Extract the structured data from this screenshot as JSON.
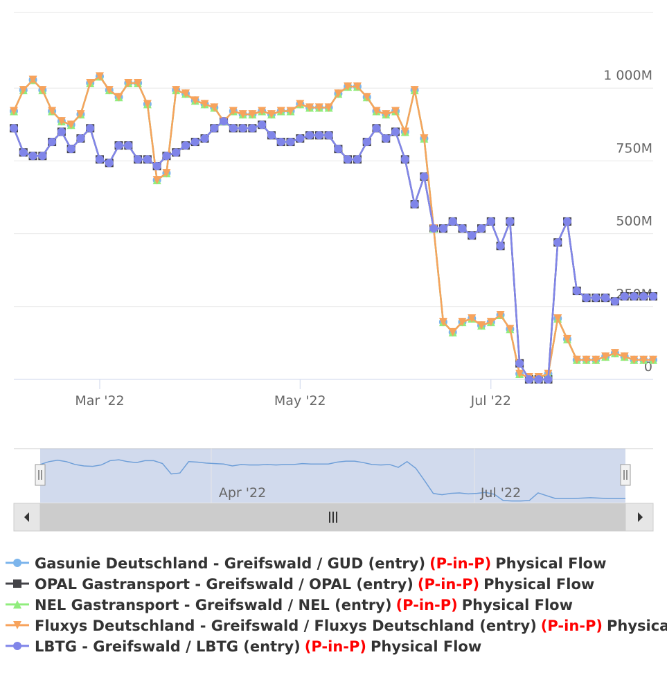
{
  "chart_data": {
    "type": "line",
    "categories": [
      null,
      null,
      null,
      null,
      null,
      null,
      null,
      null,
      null,
      "Mar '22",
      null,
      null,
      null,
      null,
      null,
      null,
      null,
      null,
      null,
      null,
      null,
      null,
      null,
      null,
      null,
      null,
      null,
      null,
      null,
      null,
      "May '22",
      null,
      null,
      null,
      null,
      null,
      null,
      null,
      null,
      null,
      null,
      null,
      null,
      null,
      null,
      null,
      null,
      null,
      null,
      null,
      "Jul '22",
      null,
      null,
      null,
      null,
      null,
      null,
      null,
      null,
      null,
      null,
      null,
      null,
      null,
      null,
      null,
      null,
      null
    ],
    "ylim": [
      0,
      1250
    ],
    "yticks": [
      0,
      {
        "value": 250,
        "label": "250M"
      },
      {
        "value": 500,
        "label": "500M"
      },
      {
        "value": 750,
        "label": "750M"
      },
      {
        "value": 1000,
        "label": "1 000M"
      }
    ],
    "grid": true,
    "series": [
      {
        "name": "Gasunie Deutschland - Greifswald / GUD (entry)",
        "legend_tag": "(P-in-P)",
        "legend_suffix": "Physical Flow",
        "color": "#7cb5ec",
        "marker": "circle",
        "values": [
          921,
          993,
          1028,
          993,
          921,
          886,
          874,
          910,
          1017,
          1040,
          993,
          969,
          1017,
          1017,
          945,
          684,
          708,
          993,
          981,
          957,
          945,
          933,
          886,
          921,
          910,
          910,
          921,
          910,
          921,
          921,
          945,
          933,
          933,
          933,
          981,
          1005,
          1005,
          969,
          921,
          910,
          921,
          850,
          993,
          827,
          518,
          197,
          162,
          197,
          209,
          185,
          197,
          221,
          173,
          19,
          7,
          7,
          19,
          209,
          138,
          67,
          67,
          67,
          78,
          90,
          78,
          67,
          67,
          67
        ]
      },
      {
        "name": "OPAL Gastransport - Greifswald / OPAL (entry)",
        "legend_tag": "(P-in-P)",
        "legend_suffix": "Physical Flow",
        "color": "#434348",
        "marker": "square",
        "values": [
          862,
          779,
          767,
          767,
          815,
          850,
          791,
          827,
          862,
          755,
          743,
          803,
          803,
          755,
          755,
          732,
          767,
          779,
          803,
          815,
          827,
          862,
          886,
          862,
          862,
          862,
          874,
          838,
          815,
          815,
          827,
          838,
          838,
          838,
          791,
          755,
          755,
          815,
          862,
          827,
          850,
          755,
          601,
          696,
          518,
          518,
          542,
          518,
          494,
          518,
          542,
          458,
          542,
          55,
          0,
          0,
          0,
          470,
          542,
          304,
          280,
          280,
          280,
          268,
          285,
          285,
          285,
          285
        ]
      },
      {
        "name": "NEL Gastransport - Greifswald / NEL (entry)",
        "legend_tag": "(P-in-P)",
        "legend_suffix": "Physical Flow",
        "color": "#90ed7d",
        "marker": "triangle",
        "values": [
          921,
          993,
          1028,
          993,
          921,
          886,
          874,
          910,
          1017,
          1040,
          993,
          969,
          1017,
          1017,
          945,
          684,
          708,
          993,
          981,
          957,
          945,
          933,
          886,
          921,
          910,
          910,
          921,
          910,
          921,
          921,
          945,
          933,
          933,
          933,
          981,
          1005,
          1005,
          969,
          921,
          910,
          921,
          850,
          993,
          827,
          518,
          197,
          162,
          197,
          209,
          185,
          197,
          221,
          173,
          19,
          7,
          7,
          19,
          209,
          138,
          67,
          67,
          67,
          78,
          90,
          78,
          67,
          67,
          67
        ]
      },
      {
        "name": "Fluxys Deutschland - Greifswald / Fluxys Deutschland (entry)",
        "legend_tag": "(P-in-P)",
        "legend_suffix": "Physical Flow",
        "color": "#f7a35c",
        "marker": "triangle-down",
        "values": [
          921,
          993,
          1028,
          993,
          921,
          886,
          874,
          910,
          1017,
          1040,
          993,
          969,
          1017,
          1017,
          945,
          684,
          708,
          993,
          981,
          957,
          945,
          933,
          886,
          921,
          910,
          910,
          921,
          910,
          921,
          921,
          945,
          933,
          933,
          933,
          981,
          1005,
          1005,
          969,
          921,
          910,
          921,
          850,
          993,
          827,
          518,
          197,
          162,
          197,
          209,
          185,
          197,
          221,
          173,
          19,
          7,
          7,
          19,
          209,
          138,
          67,
          67,
          67,
          78,
          90,
          78,
          67,
          67,
          67
        ]
      },
      {
        "name": "LBTG - Greifswald / LBTG (entry)",
        "legend_tag": "(P-in-P)",
        "legend_suffix": "Physical Flow",
        "color": "#8085e9",
        "marker": "circle",
        "values": [
          862,
          779,
          767,
          767,
          815,
          850,
          791,
          827,
          862,
          755,
          743,
          803,
          803,
          755,
          755,
          732,
          767,
          779,
          803,
          815,
          827,
          862,
          886,
          862,
          862,
          862,
          874,
          838,
          815,
          815,
          827,
          838,
          838,
          838,
          791,
          755,
          755,
          815,
          862,
          827,
          850,
          755,
          601,
          696,
          518,
          518,
          542,
          518,
          494,
          518,
          542,
          458,
          542,
          55,
          0,
          0,
          0,
          470,
          542,
          304,
          280,
          280,
          280,
          268,
          285,
          285,
          285,
          285
        ]
      }
    ],
    "navigator": {
      "labels": [
        "Apr '22",
        "Jul '22"
      ]
    }
  }
}
